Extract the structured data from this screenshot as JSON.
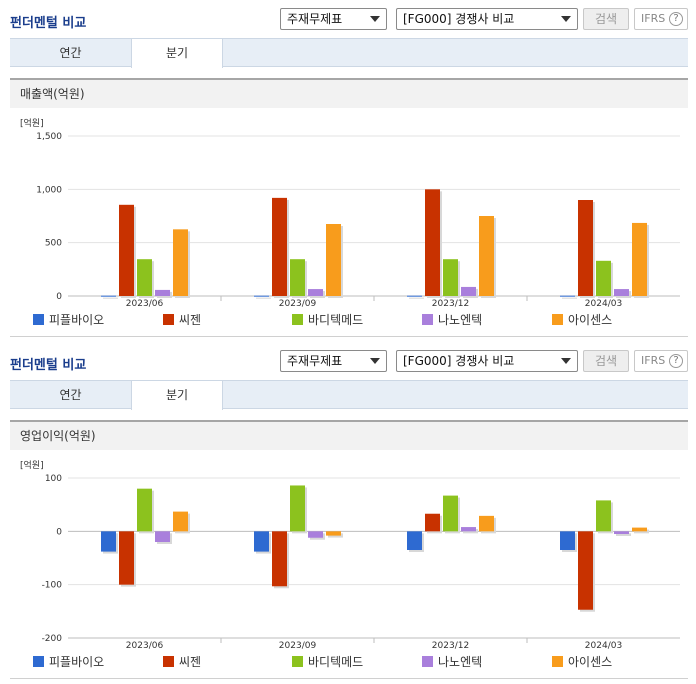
{
  "sections": [
    {
      "title": "펀더멘털 비교",
      "select1": "주재무제표",
      "select2": "[FG000] 경쟁사 비교",
      "search_label": "검색",
      "ifrs_label": "IFRS",
      "ifrs_help": "?",
      "tabs": [
        {
          "label": "연간"
        },
        {
          "label": "분기"
        }
      ],
      "metric": "매출액(억원)"
    },
    {
      "title": "펀더멘털 비교",
      "select1": "주재무제표",
      "select2": "[FG000] 경쟁사 비교",
      "search_label": "검색",
      "ifrs_label": "IFRS",
      "ifrs_help": "?",
      "tabs": [
        {
          "label": "연간"
        },
        {
          "label": "분기"
        }
      ],
      "metric": "영업이익(억원)"
    }
  ],
  "chart_data": [
    {
      "type": "bar",
      "ylabel": "[억원]",
      "ylim": [
        0,
        1500
      ],
      "ticks": [
        0,
        500,
        1000,
        1500
      ],
      "tick_labels": [
        "0",
        "500",
        "1,000",
        "1,500"
      ],
      "categories": [
        "2023/06",
        "2023/09",
        "2023/12",
        "2024/03"
      ],
      "legend_position": "bottom",
      "series": [
        {
          "name": "피플바이오",
          "color": "#2e6ad1",
          "values": [
            3,
            3,
            3,
            3
          ]
        },
        {
          "name": "씨젠",
          "color": "#c83200",
          "values": [
            855,
            920,
            1000,
            900
          ]
        },
        {
          "name": "바디텍메드",
          "color": "#8cc21e",
          "values": [
            345,
            345,
            345,
            330
          ]
        },
        {
          "name": "나노엔텍",
          "color": "#a97fdc",
          "values": [
            57,
            65,
            85,
            65
          ]
        },
        {
          "name": "아이센스",
          "color": "#f89c1c",
          "values": [
            625,
            675,
            750,
            685
          ]
        }
      ]
    },
    {
      "type": "bar",
      "ylabel": "[억원]",
      "ylim": [
        -200,
        100
      ],
      "ticks": [
        -200,
        -100,
        0,
        100
      ],
      "tick_labels": [
        "-200",
        "-100",
        "0",
        "100"
      ],
      "categories": [
        "2023/06",
        "2023/09",
        "2023/12",
        "2024/03"
      ],
      "legend_position": "bottom",
      "series": [
        {
          "name": "피플바이오",
          "color": "#2e6ad1",
          "values": [
            -38,
            -38,
            -35,
            -35
          ]
        },
        {
          "name": "씨젠",
          "color": "#c83200",
          "values": [
            -100,
            -103,
            33,
            -147
          ]
        },
        {
          "name": "바디텍메드",
          "color": "#8cc21e",
          "values": [
            80,
            86,
            67,
            58
          ]
        },
        {
          "name": "나노엔텍",
          "color": "#a97fdc",
          "values": [
            -20,
            -12,
            8,
            -5
          ]
        },
        {
          "name": "아이센스",
          "color": "#f89c1c",
          "values": [
            37,
            -8,
            29,
            7
          ]
        }
      ]
    }
  ]
}
